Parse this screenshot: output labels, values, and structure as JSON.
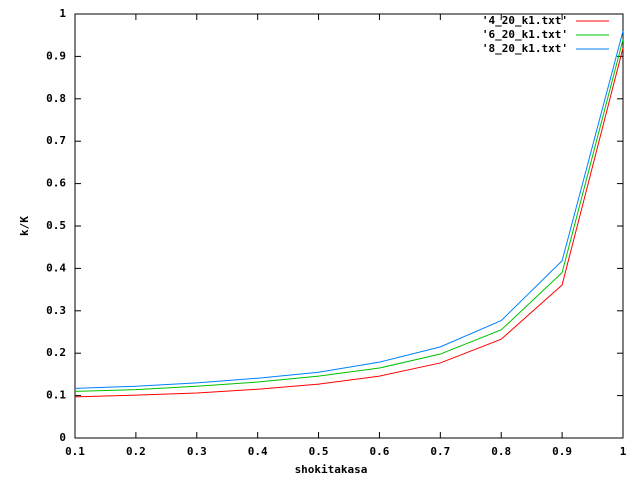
{
  "chart_data": {
    "type": "line",
    "xlabel": "shokitakasa",
    "ylabel": "k/K",
    "x": [
      0.1,
      0.2,
      0.3,
      0.4,
      0.5,
      0.6,
      0.7,
      0.8,
      0.9,
      1
    ],
    "series": [
      {
        "name": "'4_20_k1.txt'",
        "color": "#ff0000",
        "values": [
          0.097,
          0.101,
          0.106,
          0.115,
          0.127,
          0.146,
          0.177,
          0.233,
          0.361,
          0.92
        ]
      },
      {
        "name": "'6_20_k1.txt'",
        "color": "#00c000",
        "values": [
          0.11,
          0.114,
          0.122,
          0.132,
          0.146,
          0.165,
          0.198,
          0.255,
          0.39,
          0.94
        ]
      },
      {
        "name": "'8_20_k1.txt'",
        "color": "#0080ff",
        "values": [
          0.117,
          0.122,
          0.13,
          0.141,
          0.155,
          0.179,
          0.215,
          0.277,
          0.418,
          0.96
        ]
      }
    ],
    "xlim": [
      0.1,
      1
    ],
    "xticks": [
      0.1,
      0.2,
      0.3,
      0.4,
      0.5,
      0.6,
      0.7,
      0.8,
      0.9,
      1
    ],
    "ylim": [
      0,
      1
    ],
    "yticks": [
      0,
      0.1,
      0.2,
      0.3,
      0.4,
      0.5,
      0.6,
      0.7,
      0.8,
      0.9,
      1
    ],
    "legend": "top-right",
    "grid": false
  }
}
